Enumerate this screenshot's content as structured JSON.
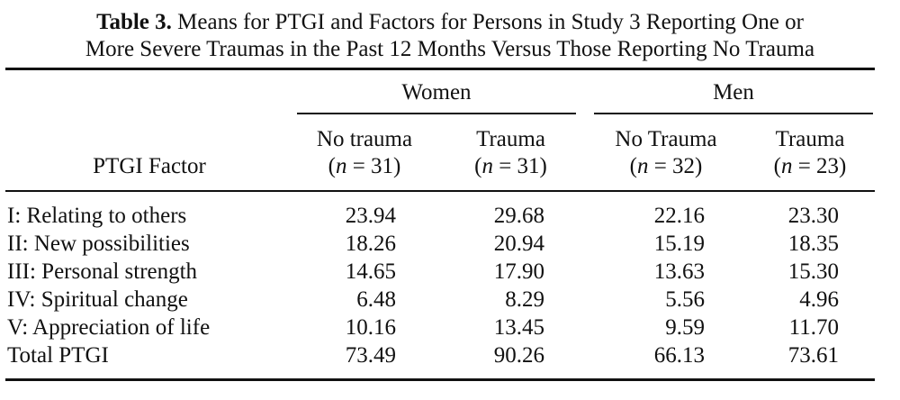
{
  "table": {
    "caption_label": "Table 3.",
    "caption_line1": "Means for PTGI and Factors for Persons in Study 3 Reporting One or",
    "caption_line2": "More Severe Traumas in the Past 12 Months Versus Those Reporting No Trauma",
    "group_headers": [
      "Women",
      "Men"
    ],
    "row_header_label": "PTGI Factor",
    "columns": [
      {
        "label": "No trauma",
        "n_var": "n",
        "n_rest": " = 31)"
      },
      {
        "label": "Trauma",
        "n_var": "n",
        "n_rest": " = 31)"
      },
      {
        "label": "No Trauma",
        "n_var": "n",
        "n_rest": " = 32)"
      },
      {
        "label": "Trauma",
        "n_var": "n",
        "n_rest": " = 23)"
      }
    ],
    "rows": [
      {
        "factor": "I: Relating to others",
        "values": [
          "23.94",
          "29.68",
          "22.16",
          "23.30"
        ]
      },
      {
        "factor": "II: New possibilities",
        "values": [
          "18.26",
          "20.94",
          "15.19",
          "18.35"
        ]
      },
      {
        "factor": "III: Personal strength",
        "values": [
          "14.65",
          "17.90",
          "13.63",
          "15.30"
        ]
      },
      {
        "factor": "IV: Spiritual change",
        "values": [
          "6.48",
          "8.29",
          "5.56",
          "4.96"
        ]
      },
      {
        "factor": "V: Appreciation of life",
        "values": [
          "10.16",
          "13.45",
          "9.59",
          "11.70"
        ]
      },
      {
        "factor": "Total PTGI",
        "values": [
          "73.49",
          "90.26",
          "66.13",
          "73.61"
        ]
      }
    ]
  }
}
